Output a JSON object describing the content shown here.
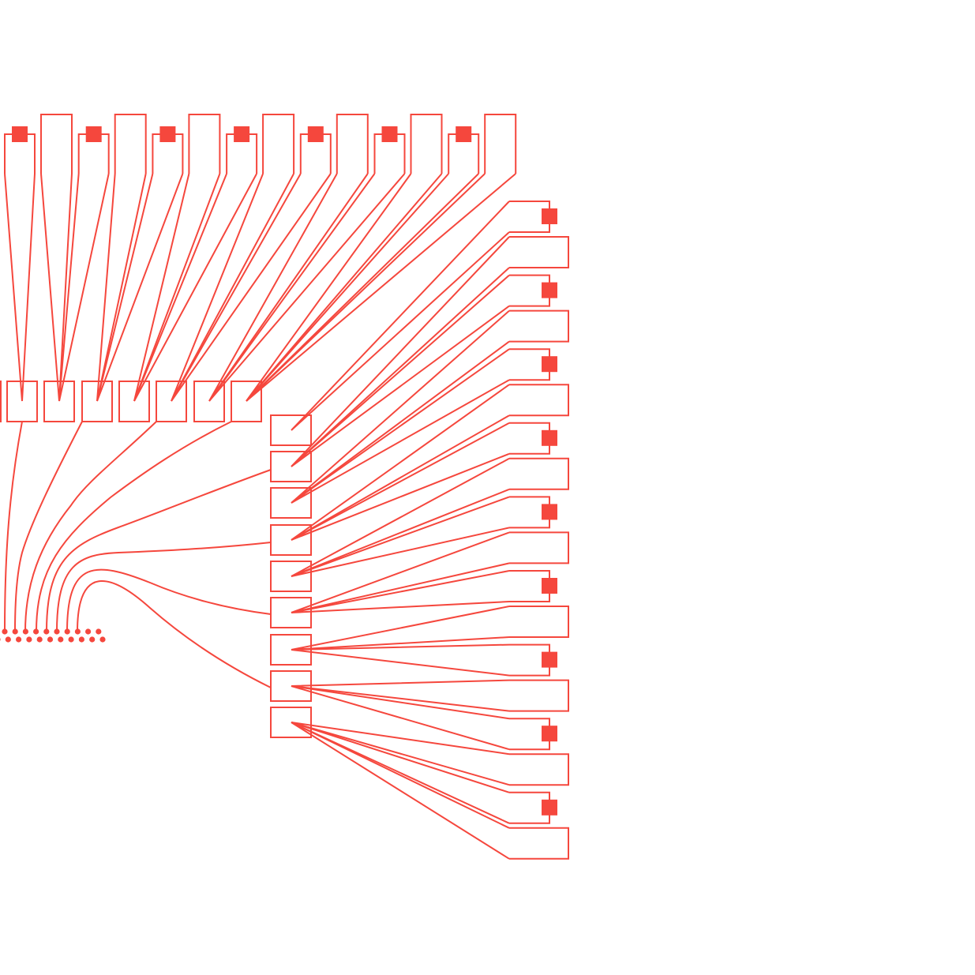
{
  "diagram": {
    "colors": {
      "stroke": "#f5473d",
      "fill": "#f5473d",
      "background": "#ffffff"
    }
  }
}
